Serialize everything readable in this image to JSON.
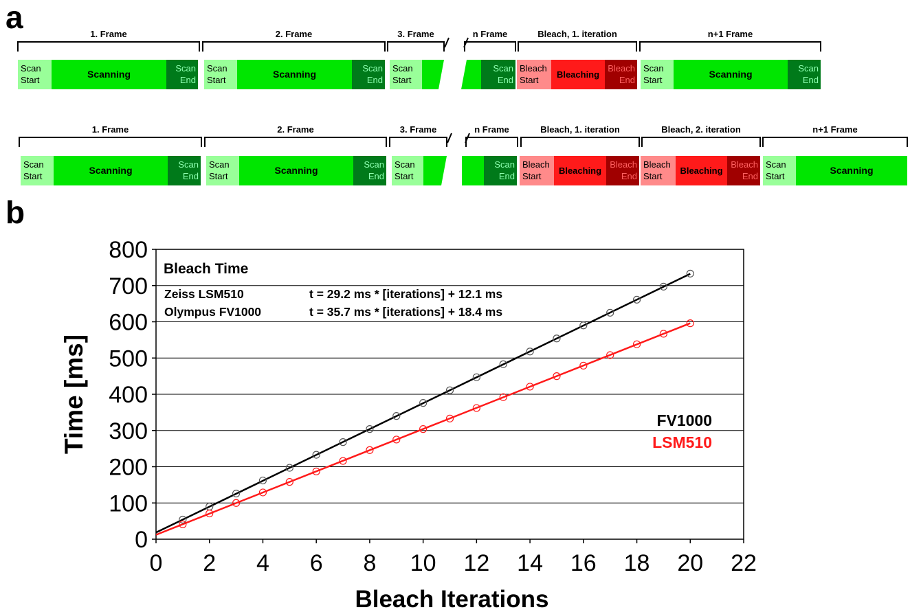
{
  "panel_a": {
    "letter": "a",
    "rows": [
      {
        "brackets": [
          "1. Frame",
          "2. Frame",
          "3. Frame",
          "n Frame",
          "Bleach, 1. iteration",
          "n+1 Frame"
        ],
        "segments": [
          {
            "lines": [
              "Scan",
              "Start"
            ],
            "kind": "scan-start"
          },
          {
            "lines": [
              "Scanning"
            ],
            "kind": "scanning"
          },
          {
            "lines": [
              "Scan",
              "End"
            ],
            "kind": "scan-end"
          },
          {
            "lines": [
              "Scan",
              "Start"
            ],
            "kind": "scan-start"
          },
          {
            "lines": [
              "Scanning"
            ],
            "kind": "scanning"
          },
          {
            "lines": [
              "Scan",
              "End"
            ],
            "kind": "scan-end"
          },
          {
            "lines": [
              "Scan",
              "Start"
            ],
            "kind": "scan-start"
          },
          {
            "lines": [],
            "kind": "scanning"
          },
          {
            "lines": [],
            "kind": "scanning"
          },
          {
            "lines": [
              "Scan",
              "End"
            ],
            "kind": "scan-end"
          },
          {
            "lines": [
              "Bleach",
              "Start"
            ],
            "kind": "bleach-start"
          },
          {
            "lines": [
              "Bleaching"
            ],
            "kind": "bleaching"
          },
          {
            "lines": [
              "Bleach",
              "End"
            ],
            "kind": "bleach-end"
          },
          {
            "lines": [
              "Scan",
              "Start"
            ],
            "kind": "scan-start"
          },
          {
            "lines": [
              "Scanning"
            ],
            "kind": "scanning"
          },
          {
            "lines": [
              "Scan",
              "End"
            ],
            "kind": "scan-end"
          }
        ]
      },
      {
        "brackets": [
          "1. Frame",
          "2. Frame",
          "3. Frame",
          "n Frame",
          "Bleach, 1. iteration",
          "Bleach, 2. iteration",
          "n+1 Frame"
        ],
        "segments": [
          {
            "lines": [
              "Scan",
              "Start"
            ],
            "kind": "scan-start"
          },
          {
            "lines": [
              "Scanning"
            ],
            "kind": "scanning"
          },
          {
            "lines": [
              "Scan",
              "End"
            ],
            "kind": "scan-end"
          },
          {
            "lines": [
              "Scan",
              "Start"
            ],
            "kind": "scan-start"
          },
          {
            "lines": [
              "Scanning"
            ],
            "kind": "scanning"
          },
          {
            "lines": [
              "Scan",
              "End"
            ],
            "kind": "scan-end"
          },
          {
            "lines": [
              "Scan",
              "Start"
            ],
            "kind": "scan-start"
          },
          {
            "lines": [],
            "kind": "scanning"
          },
          {
            "lines": [],
            "kind": "scanning"
          },
          {
            "lines": [
              "Scan",
              "End"
            ],
            "kind": "scan-end"
          },
          {
            "lines": [
              "Bleach",
              "Start"
            ],
            "kind": "bleach-start"
          },
          {
            "lines": [
              "Bleaching"
            ],
            "kind": "bleaching"
          },
          {
            "lines": [
              "Bleach",
              "End"
            ],
            "kind": "bleach-end"
          },
          {
            "lines": [
              "Bleach",
              "Start"
            ],
            "kind": "bleach-start"
          },
          {
            "lines": [
              "Bleaching"
            ],
            "kind": "bleaching"
          },
          {
            "lines": [
              "Bleach",
              "End"
            ],
            "kind": "bleach-end"
          },
          {
            "lines": [
              "Scan",
              "Start"
            ],
            "kind": "scan-start"
          },
          {
            "lines": [
              "Scanning"
            ],
            "kind": "scanning"
          }
        ]
      }
    ],
    "colors": {
      "scan-start": "#99ff99",
      "scanning": "#00e600",
      "scan-end": "#007a1a",
      "bleach-start": "#ff8a8a",
      "bleaching": "#ff1a1a",
      "bleach-end": "#a00000"
    },
    "text_colors": {
      "scan-start": "#000000",
      "scanning": "#000000",
      "scan-end": "#8cffb0",
      "bleach-start": "#000000",
      "bleaching": "#000000",
      "bleach-end": "#ff6060"
    }
  },
  "panel_b": {
    "letter": "b",
    "chart_data": {
      "type": "scatter",
      "title": "Bleach Time",
      "xlabel": "Bleach Iterations",
      "ylabel": "Time [ms]",
      "xlim": [
        0,
        22
      ],
      "ylim": [
        0,
        800
      ],
      "xticks": [
        0,
        2,
        4,
        6,
        8,
        10,
        12,
        14,
        16,
        18,
        20,
        22
      ],
      "yticks": [
        0,
        100,
        200,
        300,
        400,
        500,
        600,
        700,
        800
      ],
      "grid": "horizontal",
      "legend_placement": "right",
      "equations": [
        {
          "name": "Zeiss LSM510",
          "formula": "t = 29.2 ms * [iterations] + 12.1 ms"
        },
        {
          "name": "Olympus FV1000",
          "formula": "t = 35.7 ms * [iterations] + 18.4 ms"
        }
      ],
      "series": [
        {
          "name": "FV1000",
          "color": "#000000",
          "fit": {
            "slope": 35.7,
            "intercept": 18.4
          },
          "x": [
            1,
            2,
            3,
            4,
            5,
            6,
            7,
            8,
            9,
            10,
            11,
            12,
            13,
            14,
            15,
            16,
            17,
            18,
            19,
            20
          ],
          "y": [
            54,
            90,
            126,
            162,
            197,
            233,
            268,
            304,
            340,
            376,
            411,
            447,
            483,
            518,
            554,
            590,
            625,
            661,
            697,
            733
          ]
        },
        {
          "name": "LSM510",
          "color": "#ff1a1a",
          "fit": {
            "slope": 29.2,
            "intercept": 12.1
          },
          "x": [
            1,
            2,
            3,
            4,
            5,
            6,
            7,
            8,
            9,
            10,
            11,
            12,
            13,
            14,
            15,
            16,
            17,
            18,
            19,
            20
          ],
          "y": [
            41,
            71,
            100,
            129,
            158,
            187,
            216,
            246,
            275,
            304,
            333,
            362,
            392,
            421,
            450,
            479,
            508,
            538,
            567,
            596
          ]
        }
      ]
    }
  }
}
